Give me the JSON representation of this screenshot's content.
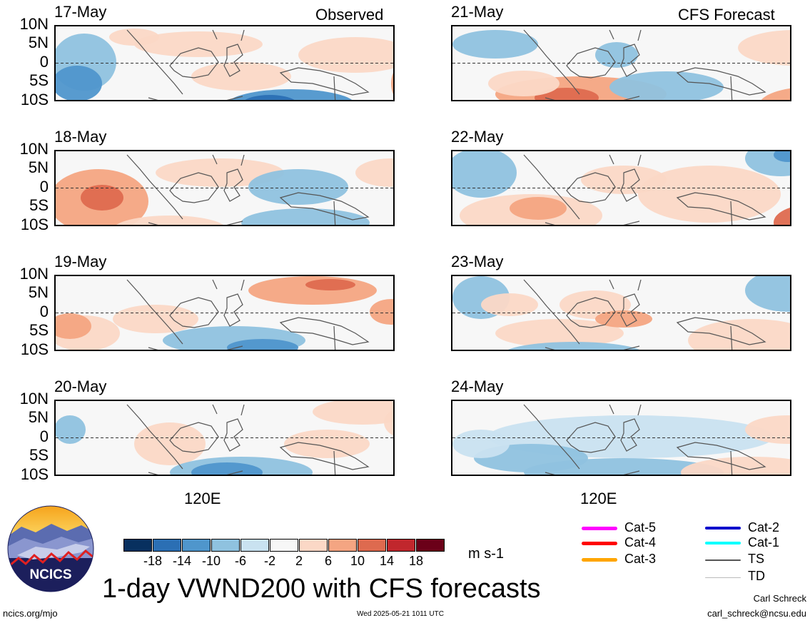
{
  "observed_label": "Observed",
  "forecast_label": "CFS Forecast",
  "lat_labels": [
    "10N",
    "5N",
    "0",
    "5S",
    "10S"
  ],
  "lon_label": "120E",
  "panels_left": [
    {
      "date": "17-May"
    },
    {
      "date": "18-May"
    },
    {
      "date": "19-May"
    },
    {
      "date": "20-May"
    }
  ],
  "panels_right": [
    {
      "date": "21-May"
    },
    {
      "date": "22-May"
    },
    {
      "date": "23-May"
    },
    {
      "date": "24-May"
    }
  ],
  "colorbar": {
    "colors": [
      "#08305f",
      "#2b6fb4",
      "#4f96cc",
      "#8fc2df",
      "#c9e2f0",
      "#f7f7f7",
      "#fbd8c6",
      "#f4a582",
      "#de6a4f",
      "#c1272d",
      "#6b0019"
    ],
    "labels": [
      "-18",
      "-14",
      "-10",
      "-6",
      "-2",
      "2",
      "6",
      "10",
      "14",
      "18"
    ],
    "units": "m s-1"
  },
  "legend": {
    "items": [
      {
        "label": "Cat-5",
        "color": "#ff00ff"
      },
      {
        "label": "Cat-4",
        "color": "#ff0000"
      },
      {
        "label": "Cat-3",
        "color": "#ffa500"
      },
      {
        "label": "Cat-2",
        "color": "#0000cc"
      },
      {
        "label": "Cat-1",
        "color": "#00ffff"
      },
      {
        "label": "TS",
        "color": "#555555"
      },
      {
        "label": "TD",
        "color": "#bbbbbb"
      }
    ]
  },
  "logo_text": "NCICS",
  "title": "1-day VWND200 with CFS forecasts",
  "footer": {
    "website": "ncics.org/mjo",
    "timestamp": "Wed 2025-05-21 1011 UTC",
    "author": "Carl Schreck",
    "email": "carl_schreck@ncsu.edu"
  }
}
